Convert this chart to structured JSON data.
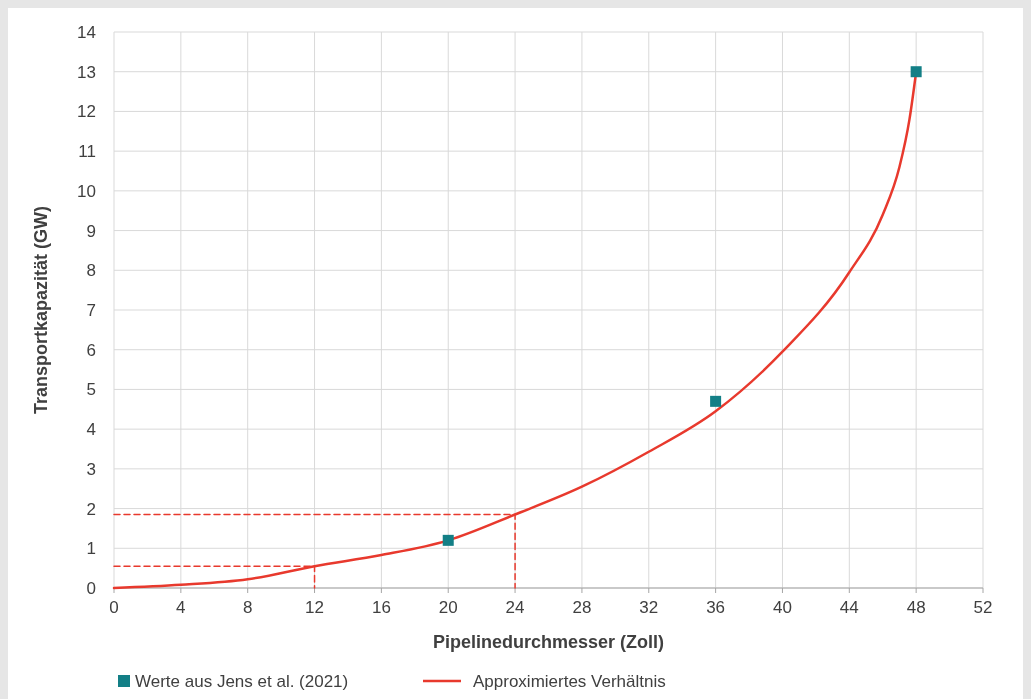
{
  "chart_data": {
    "type": "line",
    "xlabel": "Pipelinedurchmesser (Zoll)",
    "ylabel": "Transportkapazität (GW)",
    "xlim": [
      0,
      52
    ],
    "xticks": [
      0,
      4,
      8,
      12,
      16,
      20,
      24,
      28,
      32,
      36,
      40,
      44,
      48,
      52
    ],
    "ylim": [
      0,
      14
    ],
    "yticks": [
      0,
      1,
      2,
      3,
      4,
      5,
      6,
      7,
      8,
      9,
      10,
      11,
      12,
      13,
      14
    ],
    "grid": true,
    "legend": "bottom",
    "series": [
      {
        "line_style": "dashed",
        "color": "#e8392d",
        "x": [
          0,
          12,
          12
        ],
        "values": [
          0.55,
          0.55,
          0
        ]
      },
      {
        "line_style": "dashed",
        "color": "#e8392d",
        "x": [
          0,
          24,
          24
        ],
        "values": [
          1.85,
          1.85,
          0
        ]
      },
      {
        "name": "Approximiertes Verhältnis",
        "color": "#e8392d",
        "line_style": "solid",
        "x": [
          0,
          4,
          8,
          12,
          16,
          20,
          24,
          28,
          32,
          36,
          40,
          44,
          46,
          47,
          47.6,
          48
        ],
        "values": [
          0,
          0.08,
          0.22,
          0.55,
          0.83,
          1.2,
          1.85,
          2.55,
          3.43,
          4.45,
          5.95,
          7.95,
          9.4,
          10.6,
          11.8,
          13
        ]
      },
      {
        "type": "scatter",
        "name": "Werte aus Jens et al. (2021)",
        "color": "#137f86",
        "marker": "square",
        "x": [
          20,
          36,
          48
        ],
        "values": [
          1.2,
          4.7,
          13
        ]
      }
    ]
  }
}
